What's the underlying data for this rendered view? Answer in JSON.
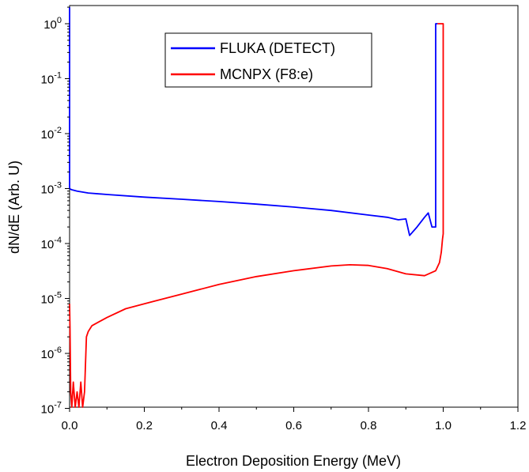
{
  "chart_data": {
    "type": "line",
    "xlabel": "Electron Deposition Energy (MeV)",
    "ylabel": "dN/dE (Arb. U)",
    "xlim": [
      0.0,
      1.2
    ],
    "ylim": [
      1e-07,
      2.5
    ],
    "yscale": "log",
    "x_ticks": [
      "0.0",
      "0.2",
      "0.4",
      "0.6",
      "0.8",
      "1.0",
      "1.2"
    ],
    "y_ticks": [
      {
        "base": "10",
        "exp": "0"
      },
      {
        "base": "10",
        "exp": "-1"
      },
      {
        "base": "10",
        "exp": "-2"
      },
      {
        "base": "10",
        "exp": "-3"
      },
      {
        "base": "10",
        "exp": "-4"
      },
      {
        "base": "10",
        "exp": "-5"
      },
      {
        "base": "10",
        "exp": "-6"
      },
      {
        "base": "10",
        "exp": "-7"
      }
    ],
    "grid": false,
    "legend_position": "top-center",
    "series": [
      {
        "name": "FLUKA (DETECT)",
        "color": "#0000ff",
        "x": [
          0.0,
          0.0,
          0.003,
          0.006,
          0.02,
          0.05,
          0.1,
          0.2,
          0.3,
          0.4,
          0.5,
          0.6,
          0.7,
          0.8,
          0.85,
          0.88,
          0.9,
          0.91,
          0.93,
          0.95,
          0.96,
          0.97,
          0.98,
          0.98,
          0.985
        ],
        "y": [
          2.0,
          0.001,
          0.00097,
          0.00095,
          0.0009,
          0.00083,
          0.00078,
          0.0007,
          0.00064,
          0.00058,
          0.00052,
          0.00046,
          0.0004,
          0.00033,
          0.0003,
          0.00027,
          0.00028,
          0.00014,
          0.0002,
          0.0003,
          0.00036,
          0.0002,
          0.0002,
          1.0,
          1.0
        ]
      },
      {
        "name": "MCNPX (F8:e)",
        "color": "#ff0000",
        "x": [
          0.0,
          0.001,
          0.003,
          0.006,
          0.01,
          0.015,
          0.02,
          0.025,
          0.03,
          0.035,
          0.04,
          0.045,
          0.05,
          0.06,
          0.08,
          0.1,
          0.15,
          0.2,
          0.3,
          0.4,
          0.5,
          0.6,
          0.7,
          0.75,
          0.8,
          0.85,
          0.9,
          0.95,
          0.98,
          0.99,
          0.995,
          0.998,
          1.0,
          1.0,
          0.985
        ],
        "y": [
          8e-06,
          3e-06,
          2e-07,
          1e-07,
          3e-07,
          1e-07,
          2e-07,
          1e-07,
          3e-07,
          1e-07,
          2e-07,
          2e-06,
          2.5e-06,
          3.2e-06,
          3.8e-06,
          4.5e-06,
          6.5e-06,
          8e-06,
          1.2e-05,
          1.8e-05,
          2.5e-05,
          3.2e-05,
          3.9e-05,
          4.1e-05,
          4e-05,
          3.5e-05,
          2.8e-05,
          2.6e-05,
          3.2e-05,
          4.5e-05,
          7e-05,
          0.00012,
          0.00015,
          1.0,
          1.0
        ]
      }
    ]
  }
}
